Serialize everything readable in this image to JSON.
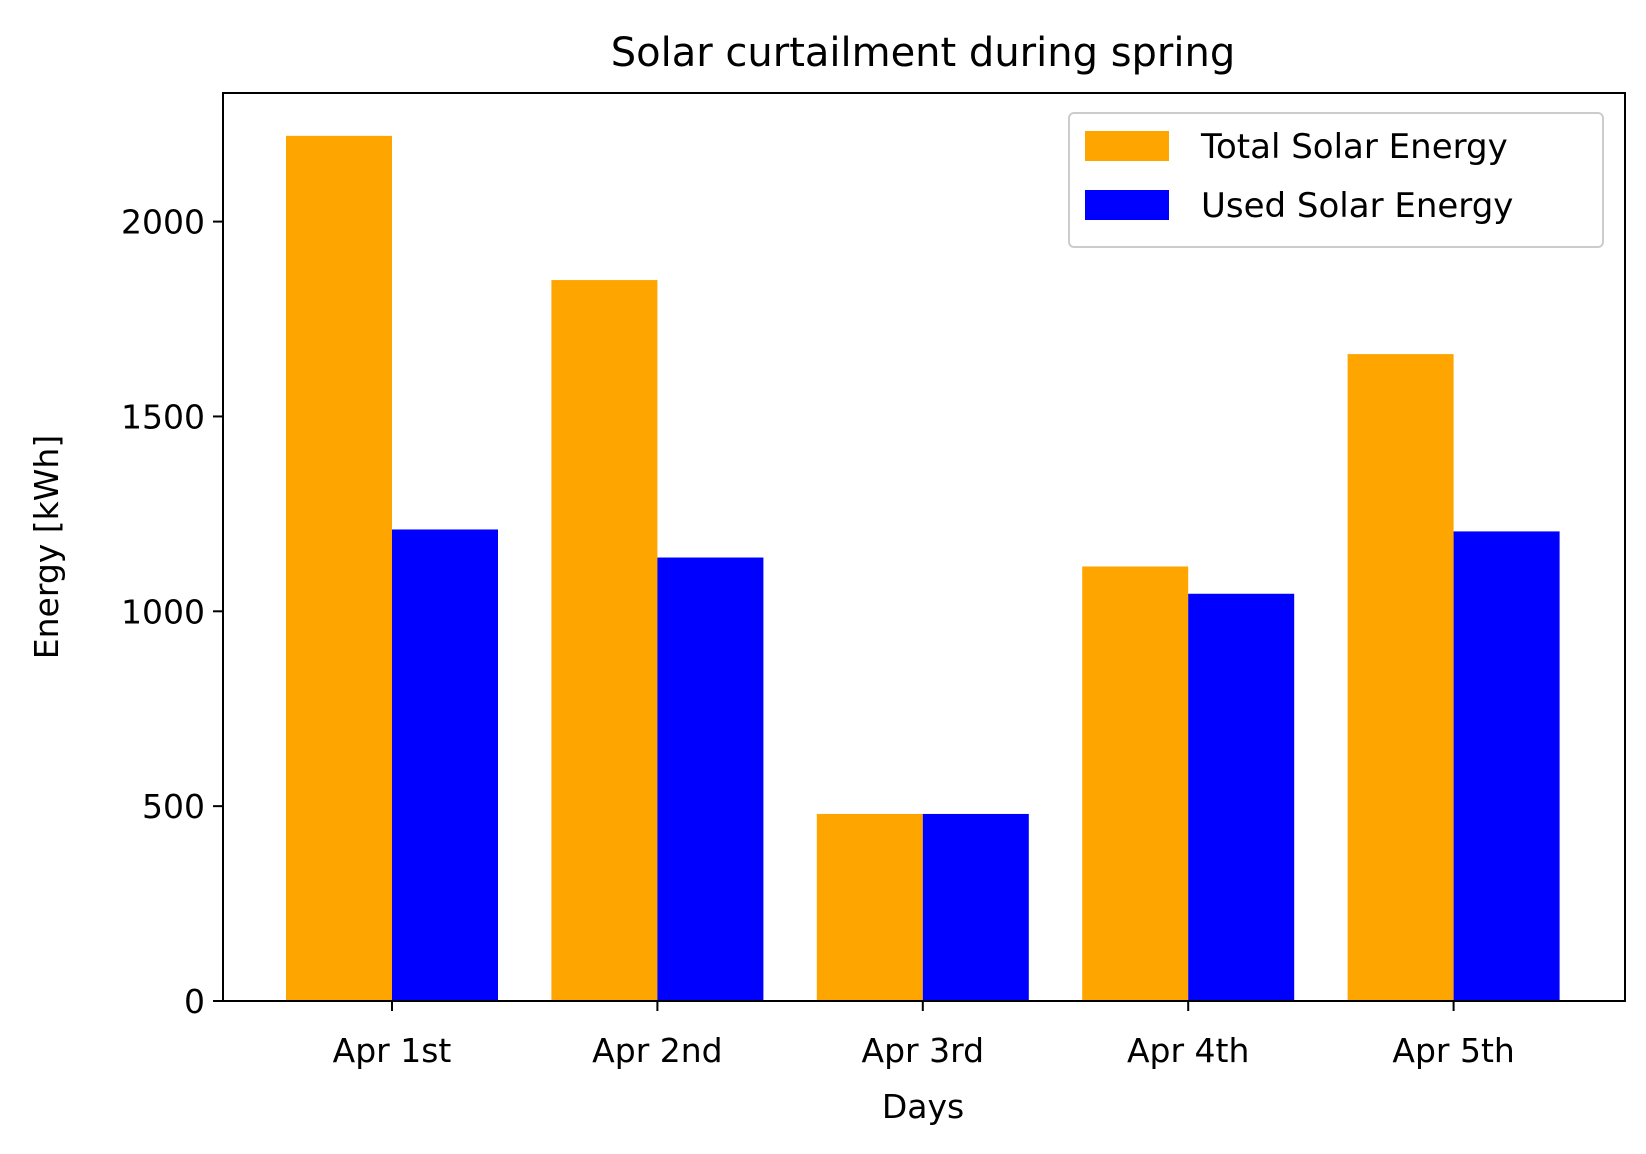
{
  "chart_data": {
    "type": "bar",
    "title": "Solar curtailment during spring",
    "xlabel": "Days",
    "ylabel": "Energy [kWh]",
    "categories": [
      "Apr 1st",
      "Apr 2nd",
      "Apr 3rd",
      "Apr 4th",
      "Apr 5th"
    ],
    "series": [
      {
        "name": "Total Solar Energy",
        "color": "#ffa500",
        "values": [
          2220,
          1850,
          480,
          1115,
          1660
        ]
      },
      {
        "name": "Used Solar Energy",
        "color": "#0000ff",
        "values": [
          1210,
          1138,
          480,
          1045,
          1205
        ]
      }
    ],
    "ylim": [
      0,
      2330
    ],
    "yticks": [
      0,
      500,
      1000,
      1500,
      2000
    ],
    "grid": false,
    "legend_position": "top-right"
  }
}
